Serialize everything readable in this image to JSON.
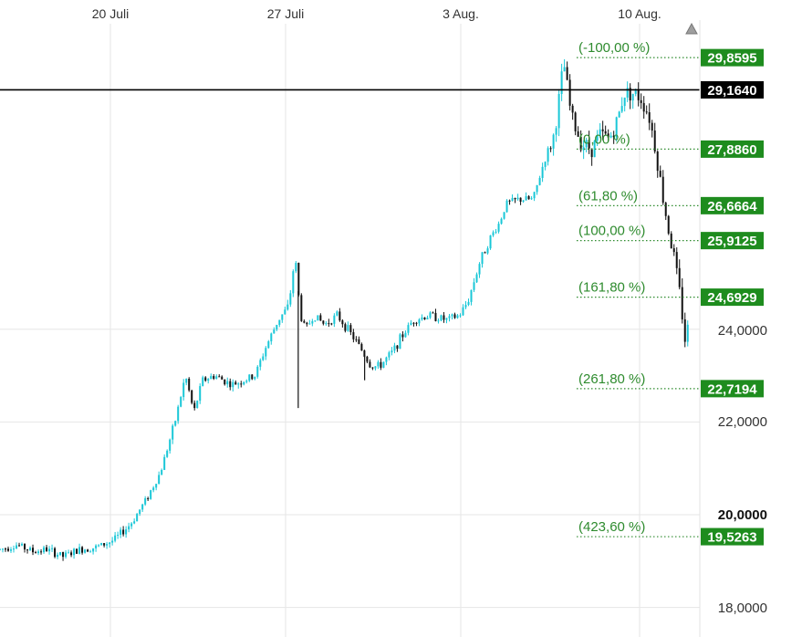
{
  "chart_data": {
    "type": "candlestick",
    "x_tick_labels": [
      "20 Juli",
      "27 Juli",
      "3 Aug.",
      "10 Aug."
    ],
    "y_tick_labels": [
      "24,0000",
      "22,0000",
      "20,0000",
      "18,0000"
    ],
    "y_range": [
      17.7,
      30.6
    ],
    "current_price": {
      "value": 29.164,
      "label": "29,1640"
    },
    "fibonacci_levels": [
      {
        "label": "(-100,00 %)",
        "value": 29.8595,
        "value_label": "29,8595"
      },
      {
        "label": "(0,00 %)",
        "value": 27.886,
        "value_label": "27,8860"
      },
      {
        "label": "(61,80 %)",
        "value": 26.6664,
        "value_label": "26,6664"
      },
      {
        "label": "(100,00 %)",
        "value": 25.9125,
        "value_label": "25,9125"
      },
      {
        "label": "(161,80 %)",
        "value": 24.6929,
        "value_label": "24,6929"
      },
      {
        "label": "(261,80 %)",
        "value": 22.7194,
        "value_label": "22,7194"
      },
      {
        "label": "(423,60 %)",
        "value": 19.5263,
        "value_label": "19,5263"
      }
    ],
    "price_path": [
      {
        "t": 0.0,
        "price": 19.25
      },
      {
        "t": 0.8,
        "price": 19.35
      },
      {
        "t": 1.6,
        "price": 19.2
      },
      {
        "t": 2.2,
        "price": 19.25
      },
      {
        "t": 3.0,
        "price": 19.1
      },
      {
        "t": 3.8,
        "price": 19.25
      },
      {
        "t": 4.6,
        "price": 19.3
      },
      {
        "t": 5.4,
        "price": 19.45
      },
      {
        "t": 6.2,
        "price": 19.8
      },
      {
        "t": 6.9,
        "price": 20.3
      },
      {
        "t": 7.6,
        "price": 20.9
      },
      {
        "t": 8.3,
        "price": 22.0
      },
      {
        "t": 8.8,
        "price": 23.0
      },
      {
        "t": 9.2,
        "price": 22.2
      },
      {
        "t": 9.6,
        "price": 22.9
      },
      {
        "t": 10.2,
        "price": 23.0
      },
      {
        "t": 11.0,
        "price": 22.8
      },
      {
        "t": 11.6,
        "price": 22.9
      },
      {
        "t": 12.1,
        "price": 23.0
      },
      {
        "t": 12.6,
        "price": 23.6
      },
      {
        "t": 13.2,
        "price": 24.2
      },
      {
        "t": 13.7,
        "price": 24.5
      },
      {
        "t": 14.0,
        "price": 25.6
      },
      {
        "t": 14.25,
        "price": 24.3
      },
      {
        "t": 14.5,
        "price": 24.0
      },
      {
        "t": 14.9,
        "price": 24.3
      },
      {
        "t": 15.4,
        "price": 24.1
      },
      {
        "t": 16.0,
        "price": 24.3
      },
      {
        "t": 16.5,
        "price": 24.0
      },
      {
        "t": 17.1,
        "price": 23.6
      },
      {
        "t": 17.6,
        "price": 23.2
      },
      {
        "t": 18.0,
        "price": 23.2
      },
      {
        "t": 18.6,
        "price": 23.5
      },
      {
        "t": 19.0,
        "price": 23.8
      },
      {
        "t": 19.6,
        "price": 24.2
      },
      {
        "t": 20.4,
        "price": 24.3
      },
      {
        "t": 21.2,
        "price": 24.2
      },
      {
        "t": 21.8,
        "price": 24.3
      },
      {
        "t": 22.2,
        "price": 24.6
      },
      {
        "t": 22.8,
        "price": 25.5
      },
      {
        "t": 23.3,
        "price": 26.0
      },
      {
        "t": 23.7,
        "price": 26.3
      },
      {
        "t": 24.0,
        "price": 26.7
      },
      {
        "t": 24.6,
        "price": 26.8
      },
      {
        "t": 25.3,
        "price": 26.8
      },
      {
        "t": 25.8,
        "price": 27.6
      },
      {
        "t": 26.3,
        "price": 28.2
      },
      {
        "t": 26.75,
        "price": 29.75
      },
      {
        "t": 27.1,
        "price": 28.6
      },
      {
        "t": 27.6,
        "price": 28.0
      },
      {
        "t": 28.1,
        "price": 27.9
      },
      {
        "t": 28.5,
        "price": 28.2
      },
      {
        "t": 28.9,
        "price": 28.1
      },
      {
        "t": 29.3,
        "price": 28.5
      },
      {
        "t": 29.6,
        "price": 29.1
      },
      {
        "t": 30.0,
        "price": 29.1
      },
      {
        "t": 30.4,
        "price": 29.0
      },
      {
        "t": 30.8,
        "price": 28.6
      },
      {
        "t": 31.1,
        "price": 27.9
      },
      {
        "t": 31.4,
        "price": 27.0
      },
      {
        "t": 31.7,
        "price": 26.2
      },
      {
        "t": 32.0,
        "price": 25.5
      },
      {
        "t": 32.3,
        "price": 24.6
      },
      {
        "t": 32.5,
        "price": 23.8
      },
      {
        "t": 32.7,
        "price": 24.1
      }
    ],
    "spike_wicks": [
      {
        "t": 14.15,
        "low": 22.3
      },
      {
        "t": 17.3,
        "low": 22.9
      }
    ],
    "colors": {
      "fibonacci": "#2e8b2e",
      "fib_box": "#1e8c1e",
      "price_line": "#000000",
      "price_box": "#000000",
      "candle_up": "#19c7d7",
      "candle_down": "#111111",
      "grid": "#e6e6e6"
    }
  }
}
